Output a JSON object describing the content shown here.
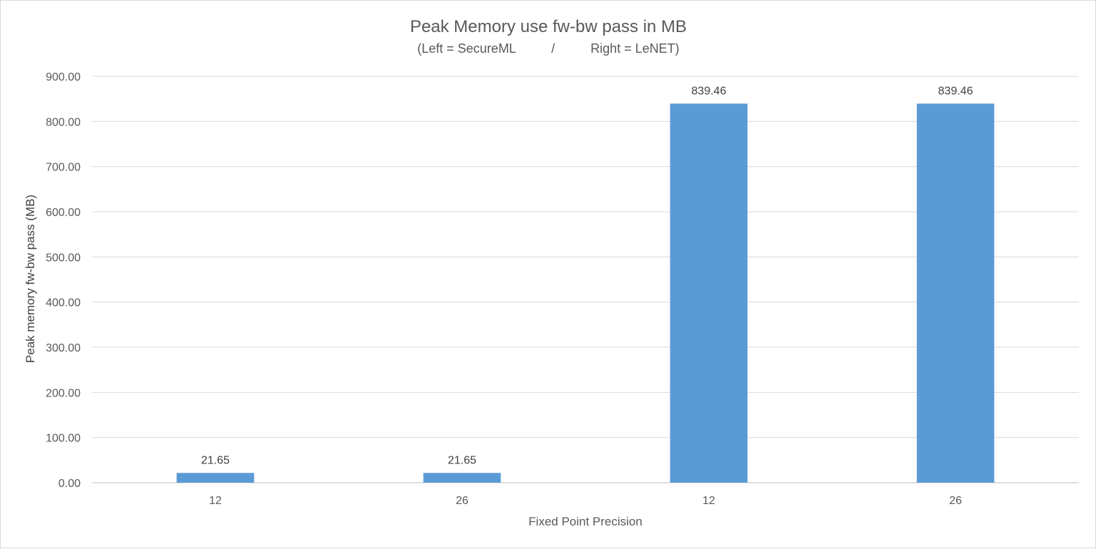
{
  "chart_data": {
    "type": "bar",
    "title": "Peak Memory use fw-bw pass in MB",
    "subtitle": "(Left = SecureML          /          Right = LeNET)",
    "xlabel": "Fixed Point Precision",
    "ylabel": "Peak memory fw-bw pass (MB)",
    "categories": [
      "12",
      "26",
      "12",
      "26"
    ],
    "values": [
      21.65,
      21.65,
      839.46,
      839.46
    ],
    "value_labels": [
      "21.65",
      "21.65",
      "839.46",
      "839.46"
    ],
    "ylim": [
      0,
      900
    ],
    "yticks": [
      "0.00",
      "100.00",
      "200.00",
      "300.00",
      "400.00",
      "500.00",
      "600.00",
      "700.00",
      "800.00",
      "900.00"
    ],
    "grid": true,
    "legend": "none",
    "colors": {
      "bar": "#5b9bd5",
      "grid": "#d9d9d9",
      "axis": "#bfbfbf",
      "text": "#595959",
      "label": "#404040"
    }
  }
}
